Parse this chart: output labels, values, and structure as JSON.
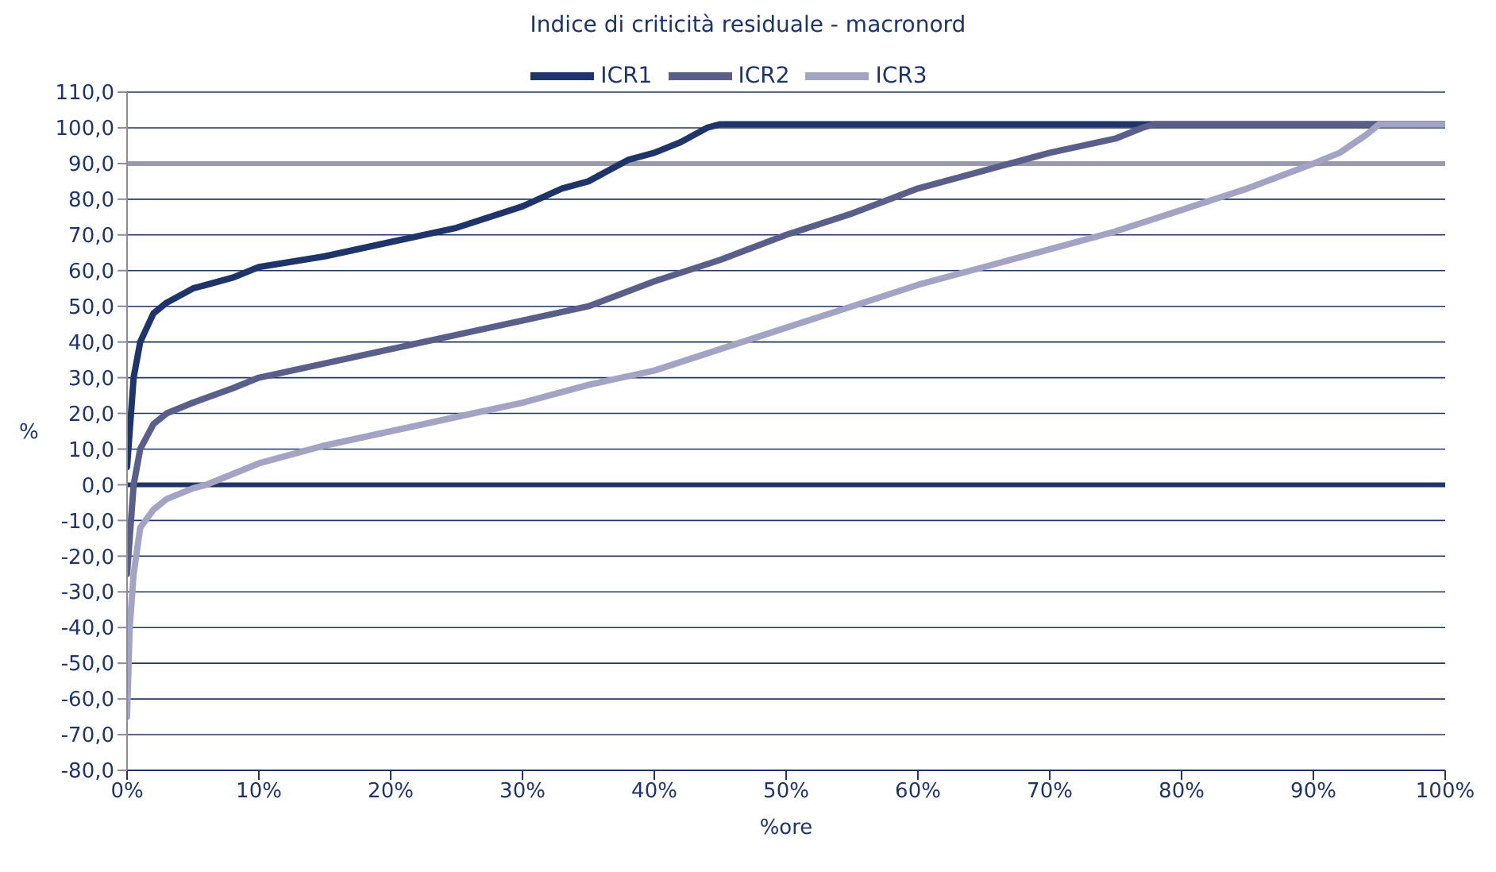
{
  "chart_data": {
    "type": "line",
    "title": "Indice di criticità residuale - macronord",
    "xlabel": "%ore",
    "ylabel": "%",
    "xlim": [
      0,
      100
    ],
    "xticks": [
      {
        "value": 0,
        "label": "0%"
      },
      {
        "value": 10,
        "label": "10%"
      },
      {
        "value": 20,
        "label": "20%"
      },
      {
        "value": 30,
        "label": "30%"
      },
      {
        "value": 40,
        "label": "40%"
      },
      {
        "value": 50,
        "label": "50%"
      },
      {
        "value": 60,
        "label": "60%"
      },
      {
        "value": 70,
        "label": "70%"
      },
      {
        "value": 80,
        "label": "80%"
      },
      {
        "value": 90,
        "label": "90%"
      },
      {
        "value": 100,
        "label": "100%"
      }
    ],
    "ylim": [
      -80,
      110
    ],
    "yticks": [
      {
        "value": -80,
        "label": "-80,0"
      },
      {
        "value": -70,
        "label": "-70,0"
      },
      {
        "value": -60,
        "label": "-60,0"
      },
      {
        "value": -50,
        "label": "-50,0"
      },
      {
        "value": -40,
        "label": "-40,0"
      },
      {
        "value": -30,
        "label": "-30,0"
      },
      {
        "value": -20,
        "label": "-20,0"
      },
      {
        "value": -10,
        "label": "-10,0"
      },
      {
        "value": 0,
        "label": "0,0"
      },
      {
        "value": 10,
        "label": "10,0"
      },
      {
        "value": 20,
        "label": "20,0"
      },
      {
        "value": 30,
        "label": "30,0"
      },
      {
        "value": 40,
        "label": "40,0"
      },
      {
        "value": 50,
        "label": "50,0"
      },
      {
        "value": 60,
        "label": "60,0"
      },
      {
        "value": 70,
        "label": "70,0"
      },
      {
        "value": 80,
        "label": "80,0"
      },
      {
        "value": 90,
        "label": "90,0"
      },
      {
        "value": 100,
        "label": "100,0"
      },
      {
        "value": 110,
        "label": "110,0"
      }
    ],
    "grid": "y",
    "legend": "top",
    "marker": "none",
    "line_style": "solid",
    "ref_lines": [
      {
        "axis": "y",
        "value": 0,
        "color": "#1f3468"
      },
      {
        "axis": "y",
        "value": 90,
        "color": "#9a9aae"
      }
    ],
    "series": [
      {
        "name": "ICR1",
        "color": "#1f3468",
        "x": [
          0,
          0.5,
          1,
          2,
          3,
          5,
          8,
          10,
          15,
          20,
          25,
          30,
          33,
          35,
          37,
          38,
          40,
          42,
          44,
          45,
          100
        ],
        "values": [
          5,
          30,
          40,
          48,
          51,
          55,
          58,
          61,
          64,
          68,
          72,
          78,
          83,
          85,
          89,
          91,
          93,
          96,
          100,
          101,
          101
        ]
      },
      {
        "name": "ICR2",
        "color": "#5a5f8a",
        "x": [
          0,
          0.5,
          1,
          2,
          3,
          5,
          8,
          10,
          15,
          20,
          25,
          30,
          35,
          40,
          45,
          50,
          55,
          60,
          65,
          70,
          75,
          77,
          78,
          100
        ],
        "values": [
          -25,
          0,
          10,
          17,
          20,
          23,
          27,
          30,
          34,
          38,
          42,
          46,
          50,
          57,
          63,
          70,
          76,
          83,
          88,
          93,
          97,
          100,
          101,
          101
        ]
      },
      {
        "name": "ICR3",
        "color": "#a3a3c3",
        "x": [
          0,
          0.2,
          0.5,
          1,
          2,
          3,
          5,
          6,
          8,
          10,
          15,
          20,
          25,
          30,
          35,
          40,
          45,
          50,
          55,
          60,
          65,
          70,
          75,
          80,
          85,
          90,
          92,
          94,
          95,
          100
        ],
        "values": [
          -65,
          -40,
          -25,
          -12,
          -7,
          -4,
          -1,
          0,
          3,
          6,
          11,
          15,
          19,
          23,
          28,
          32,
          38,
          44,
          50,
          56,
          61,
          66,
          71,
          77,
          83,
          90,
          93,
          98,
          101,
          101
        ]
      }
    ]
  }
}
